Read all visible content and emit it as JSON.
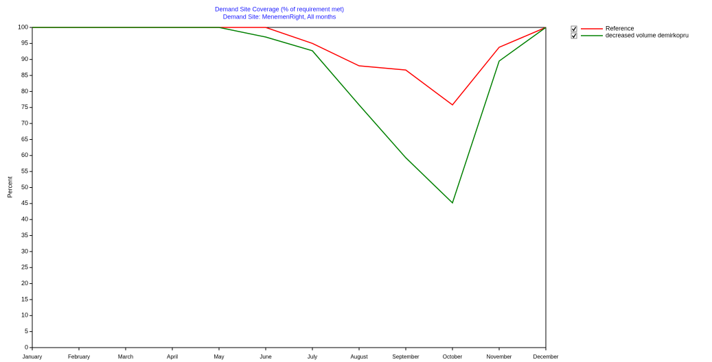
{
  "chart_data": {
    "type": "line",
    "title": "Demand Site Coverage (% of requirement met)",
    "subtitle": "Demand Site: MenemenRight,  All months",
    "y_label": "Percent",
    "categories": [
      "January",
      "February",
      "March",
      "April",
      "May",
      "June",
      "July",
      "August",
      "September",
      "October",
      "November",
      "December"
    ],
    "series": [
      {
        "name": "Reference",
        "color": "#ff0000",
        "values": [
          100,
          100,
          100,
          100,
          100,
          100,
          95,
          88,
          86.7,
          75.8,
          93.8,
          100
        ]
      },
      {
        "name": "decreased volume demirkopru",
        "color": "#008000",
        "values": [
          100,
          100,
          100,
          100,
          100,
          97,
          92.7,
          75.8,
          59.3,
          45.2,
          89.5,
          100
        ]
      }
    ],
    "ylim": [
      0,
      100
    ],
    "yticks": [
      0,
      5,
      10,
      15,
      20,
      25,
      30,
      35,
      40,
      45,
      50,
      55,
      60,
      65,
      70,
      75,
      80,
      85,
      90,
      95,
      100
    ],
    "grid": false,
    "legend": "right"
  }
}
